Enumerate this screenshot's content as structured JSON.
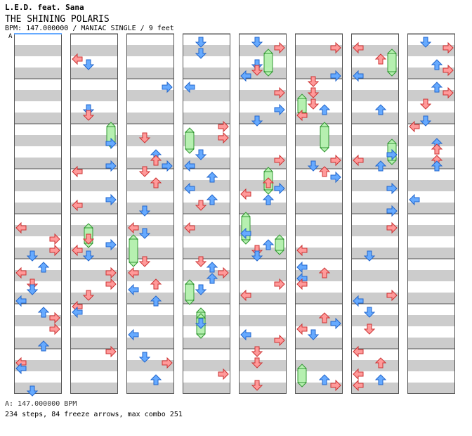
{
  "header": {
    "artist": "L.E.D. feat. Sana",
    "title": "THE SHINING POLARIS",
    "info": "BPM: 147.000000 / MANIAC SINGLE / 9 feet",
    "bpm_marker": "A"
  },
  "footer": {
    "bpm_line": "A: 147.000000 BPM",
    "stats": "234 steps, 84 freeze arrows, max combo 251"
  },
  "colors": {
    "band": "#cccccc",
    "border": "#555555",
    "red_arrow": "#ff9a9a",
    "blue_arrow": "#66aaff",
    "freeze": "#b6f0b0"
  },
  "chart_layout": {
    "columns": 8,
    "measures_per_column": 8,
    "lanes": [
      "left",
      "down",
      "up",
      "right"
    ]
  }
}
